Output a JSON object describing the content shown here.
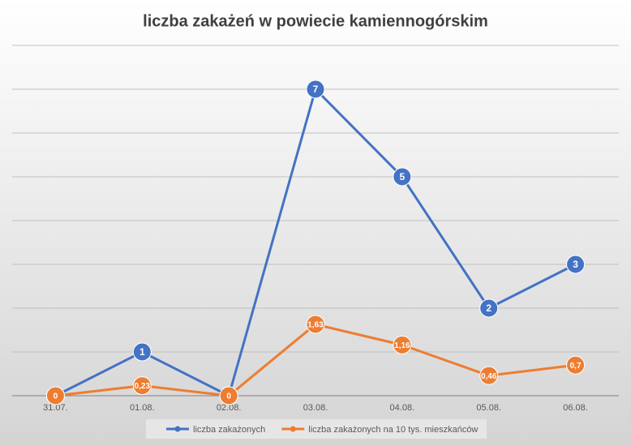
{
  "chart_data": {
    "type": "line",
    "title": "liczba zakażeń w powiecie kamiennogórskim",
    "categories": [
      "31.07.",
      "01.08.",
      "02.08.",
      "03.08.",
      "04.08.",
      "05.08.",
      "06.08."
    ],
    "series": [
      {
        "name": "liczba zakażonych",
        "color": "#4472c4",
        "values": [
          0,
          1,
          0,
          7,
          5,
          2,
          3
        ]
      },
      {
        "name": "liczba zakażonych na 10 tys. mieszkańców",
        "color": "#ed7d31",
        "values": [
          0,
          0.23,
          0,
          1.63,
          1.16,
          0.46,
          0.7
        ],
        "value_labels": [
          "0",
          "0,23",
          "0",
          "1,63",
          "1,16",
          "0,46",
          "0,7"
        ]
      }
    ],
    "ylim": [
      0,
      8
    ],
    "yticks": [
      0,
      1,
      2,
      3,
      4,
      5,
      6,
      7,
      8
    ],
    "grid": true,
    "legend": "bottom"
  }
}
